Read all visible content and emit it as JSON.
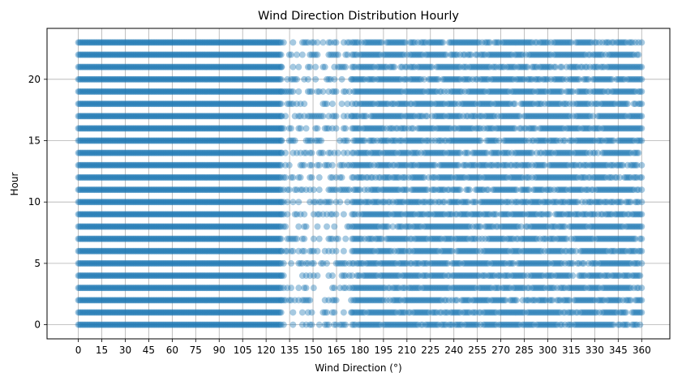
{
  "chart_data": {
    "type": "scatter",
    "title": "Wind Direction Distribution Hourly",
    "xlabel": "Wind Direction (°)",
    "ylabel": "Hour",
    "xlim": [
      -20,
      378
    ],
    "ylim": [
      -1.15,
      24.15
    ],
    "x_ticks": [
      0,
      15,
      30,
      45,
      60,
      75,
      90,
      105,
      120,
      135,
      150,
      165,
      180,
      195,
      210,
      225,
      240,
      255,
      270,
      285,
      300,
      315,
      330,
      345,
      360
    ],
    "y_ticks": [
      0,
      5,
      10,
      15,
      20
    ],
    "grid": true,
    "point_color": "#1f77b4",
    "point_alpha": 0.4,
    "series": [
      {
        "hours": [
          0,
          1,
          2,
          3,
          4,
          5,
          6,
          7,
          8,
          9,
          10,
          11,
          12,
          13,
          14,
          15,
          16,
          17,
          18,
          19,
          20,
          21,
          22,
          23
        ],
        "x_range": [
          0,
          360
        ],
        "dense_range": [
          0,
          130
        ],
        "sparse_range": [
          130,
          175
        ]
      }
    ]
  }
}
